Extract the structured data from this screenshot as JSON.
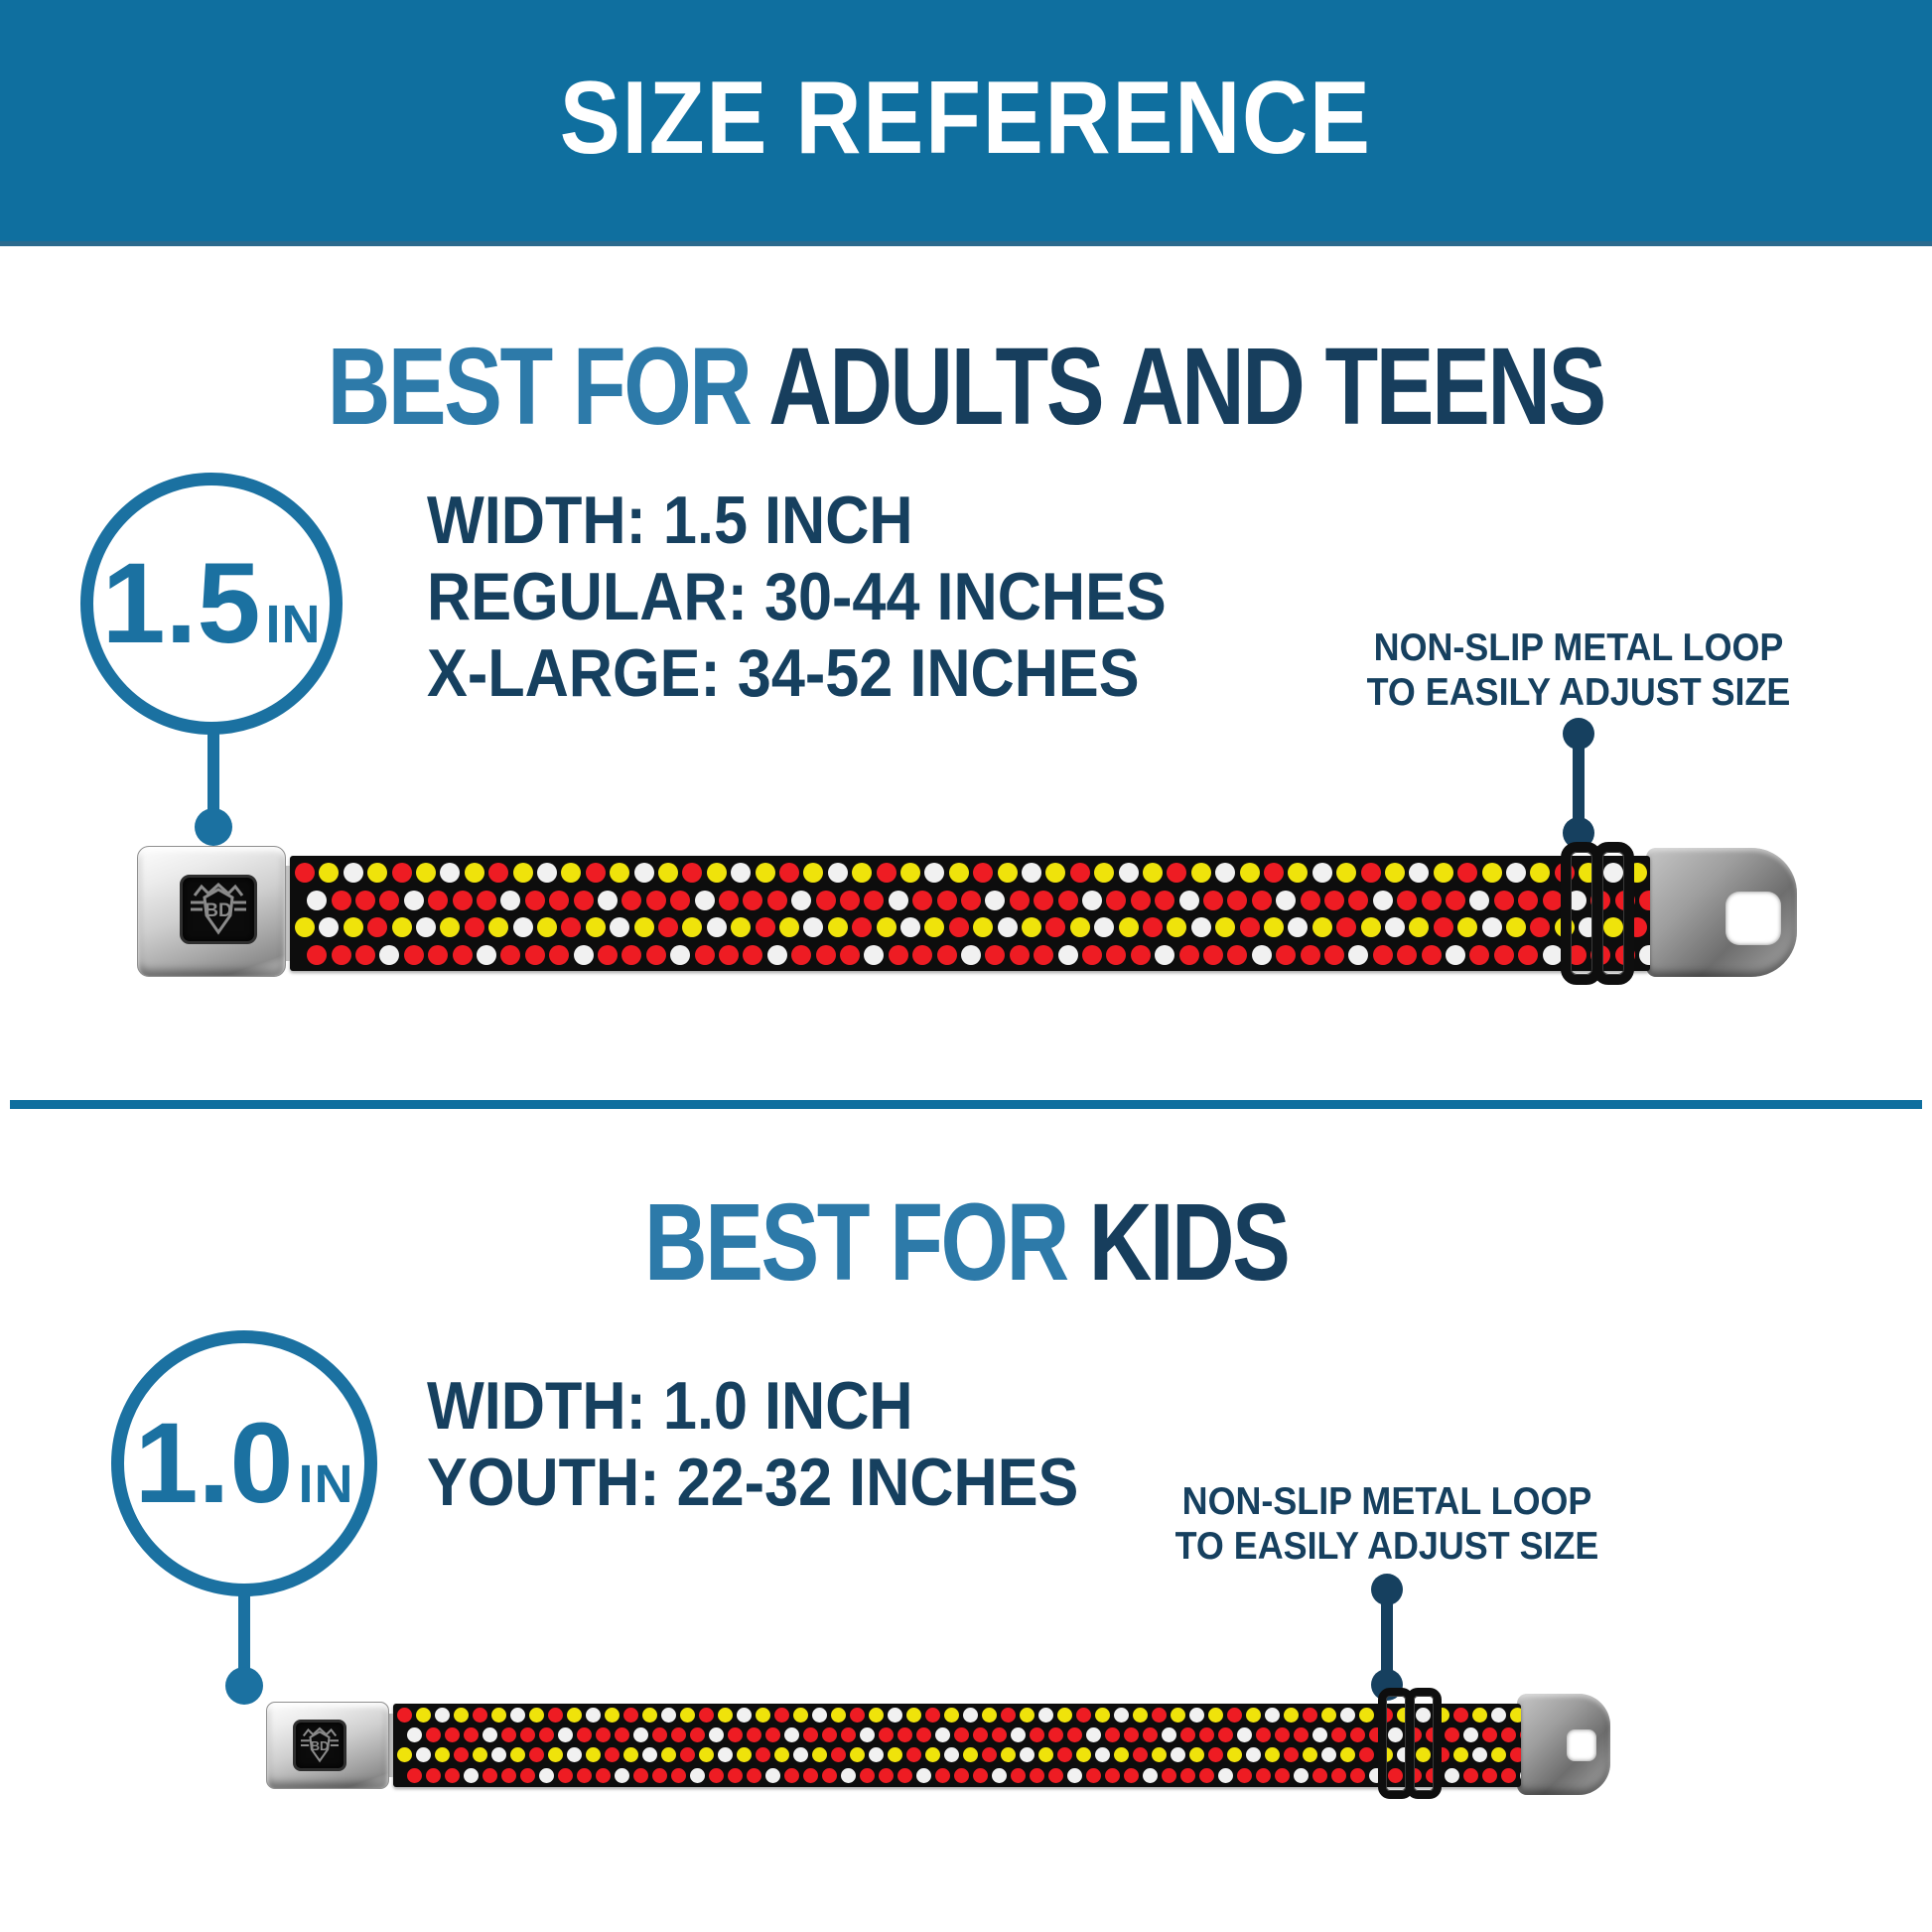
{
  "header": {
    "title": "SIZE REFERENCE"
  },
  "sections": [
    {
      "heading_prefix": "BEST FOR",
      "heading_rest": "ADULTS AND TEENS",
      "badge": {
        "value": "1.5",
        "unit": "IN"
      },
      "specs": [
        "WIDTH: 1.5 INCH",
        "REGULAR: 30-44 INCHES",
        "X-LARGE: 34-52 INCHES"
      ],
      "callout_line1": "NON-SLIP METAL LOOP",
      "callout_line2": "TO EASILY ADJUST SIZE"
    },
    {
      "heading_prefix": "BEST FOR",
      "heading_rest": "KIDS",
      "badge": {
        "value": "1.0",
        "unit": "IN"
      },
      "specs": [
        "WIDTH: 1.0 INCH",
        "YOUTH: 22-32 INCHES"
      ],
      "callout_line1": "NON-SLIP METAL LOOP",
      "callout_line2": "TO EASILY ADJUST SIZE"
    }
  ],
  "belt": {
    "buckle_logo_text": "BD",
    "webbing_background": "#0d0d0d",
    "dot_colors": {
      "R": "#ee1c23",
      "W": "#f1f1f1",
      "Y": "#efe30b"
    },
    "row_patterns": [
      "RYWY",
      "WRRR",
      "YWYR",
      "RRRW"
    ]
  },
  "theme": {
    "header_bg": "#0f6f9f",
    "accent_blue": "#1b71a1",
    "heading_blue": "#2d7aa9",
    "navy": "#16405f",
    "dot_red": "#ee1c23",
    "dot_white": "#f1f1f1",
    "dot_yellow": "#efe30b"
  }
}
